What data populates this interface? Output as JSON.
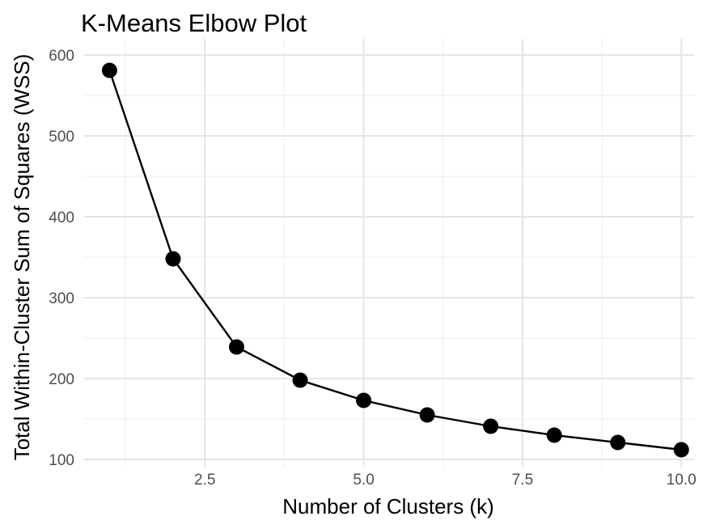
{
  "chart_data": {
    "type": "line",
    "title": "K-Means Elbow Plot",
    "xlabel": "Number of Clusters (k)",
    "ylabel": "Total Within-Cluster Sum of Squares (WSS)",
    "x": [
      1,
      2,
      3,
      4,
      5,
      6,
      7,
      8,
      9,
      10
    ],
    "series": [
      {
        "values": [
          581,
          348,
          239,
          198,
          173,
          155,
          141,
          130,
          121,
          112
        ]
      }
    ],
    "xlim": [
      0.6,
      10.2
    ],
    "ylim": [
      90,
      620
    ],
    "x_ticks": [
      2.5,
      5.0,
      7.5,
      10.0
    ],
    "x_tick_labels": [
      "2.5",
      "5.0",
      "7.5",
      "10.0"
    ],
    "y_ticks": [
      100,
      200,
      300,
      400,
      500,
      600
    ],
    "y_tick_labels": [
      "100",
      "200",
      "300",
      "400",
      "500",
      "600"
    ],
    "grid": true,
    "line_color": "#000000",
    "point_color": "#000000"
  }
}
